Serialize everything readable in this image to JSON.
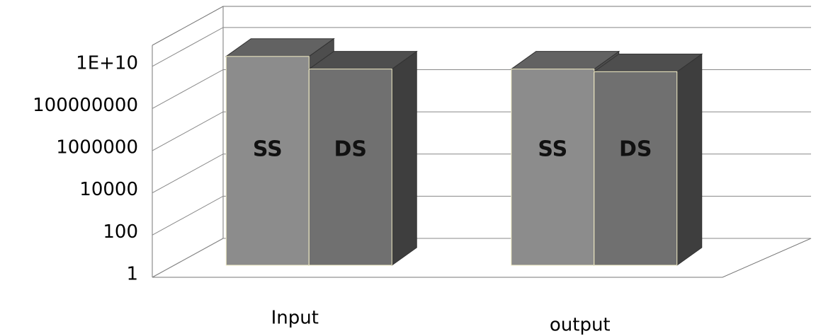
{
  "chart_data": {
    "type": "bar3d",
    "categories": [
      "Input",
      "output"
    ],
    "series": [
      {
        "name": "SS",
        "color": "#8c8c8c",
        "values": [
          8000000000,
          2000000000
        ]
      },
      {
        "name": "DS",
        "color": "#707070",
        "values": [
          2000000000,
          1500000000
        ]
      }
    ],
    "log_scale": true,
    "ylim": [
      1,
      100000000000
    ],
    "yticks": [
      1,
      100,
      10000,
      1000000,
      100000000,
      {
        "value": 10000000000,
        "label": "1E+10"
      }
    ],
    "grid": true
  }
}
